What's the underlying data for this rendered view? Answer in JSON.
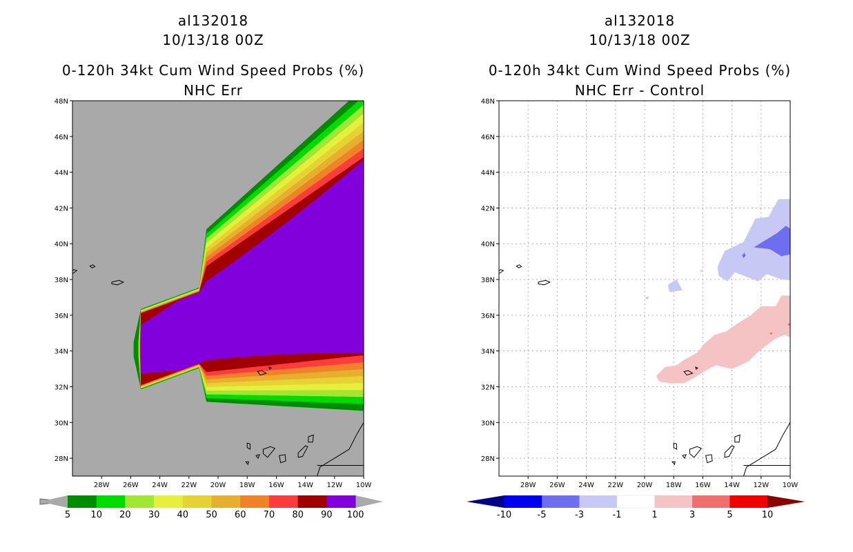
{
  "chart_data": [
    {
      "type": "heatmap",
      "map_projection": "lat-lon",
      "title_lines": [
        "al132018",
        "10/13/18 00Z",
        "0-120h 34kt Cum Wind Speed Probs (%)",
        "NHC Err"
      ],
      "xlim": [
        -30,
        -10
      ],
      "ylim": [
        27,
        48
      ],
      "x_ticks": [
        "28W",
        "26W",
        "24W",
        "22W",
        "20W",
        "18W",
        "16W",
        "14W",
        "12W",
        "10W"
      ],
      "y_ticks": [
        "28N",
        "30N",
        "32N",
        "34N",
        "36N",
        "38N",
        "40N",
        "42N",
        "44N",
        "46N",
        "48N"
      ],
      "grid": false,
      "background_color": "#a9a9a9",
      "colorbar": {
        "levels": [
          "5",
          "10",
          "20",
          "30",
          "40",
          "50",
          "60",
          "70",
          "80",
          "90",
          "100"
        ],
        "colors": [
          "#008c00",
          "#00dc00",
          "#a0e632",
          "#e6f03c",
          "#e6d232",
          "#e6af2d",
          "#f08228",
          "#fa3c3c",
          "#a00000",
          "#8200dc"
        ],
        "extend": "both",
        "extend_color": "#a9a9a9"
      },
      "probability_bands": [
        {
          "min": 5,
          "color": "#008c00"
        },
        {
          "min": 10,
          "color": "#00dc00"
        },
        {
          "min": 20,
          "color": "#a0e632"
        },
        {
          "min": 30,
          "color": "#e6f03c"
        },
        {
          "min": 40,
          "color": "#e6d232"
        },
        {
          "min": 50,
          "color": "#e6af2d"
        },
        {
          "min": 60,
          "color": "#f08228"
        },
        {
          "min": 70,
          "color": "#fa3c3c"
        },
        {
          "min": 80,
          "color": "#a00000"
        },
        {
          "min": 90,
          "color": "#8200dc"
        }
      ]
    },
    {
      "type": "heatmap",
      "map_projection": "lat-lon",
      "title_lines": [
        "al132018",
        "10/13/18 00Z",
        "0-120h 34kt Cum Wind Speed Probs (%)",
        "NHC Err - Control"
      ],
      "xlim": [
        -30,
        -10
      ],
      "ylim": [
        27,
        48
      ],
      "x_ticks": [
        "28W",
        "26W",
        "24W",
        "22W",
        "20W",
        "18W",
        "16W",
        "14W",
        "12W",
        "10W"
      ],
      "y_ticks": [
        "28N",
        "30N",
        "32N",
        "34N",
        "36N",
        "38N",
        "40N",
        "42N",
        "44N",
        "46N",
        "48N"
      ],
      "grid": true,
      "background_color": "#ffffff",
      "colorbar": {
        "levels": [
          "-10",
          "-5",
          "-3",
          "-1",
          "1",
          "3",
          "5",
          "10"
        ],
        "colors": [
          "#00008c",
          "#0000f0",
          "#6e6ef0",
          "#c8c8f5",
          "#ffffff",
          "#f5c3c3",
          "#f06e6e",
          "#f00000",
          "#8c0000"
        ],
        "extend": "both"
      },
      "difference_features": [
        {
          "name": "negative-area-north",
          "range": [
            -3,
            -1
          ],
          "color": "#c8c8f5"
        },
        {
          "name": "negative-core-north",
          "range": [
            -5,
            -3
          ],
          "color": "#6e6ef0"
        },
        {
          "name": "positive-area-south",
          "range": [
            1,
            3
          ],
          "color": "#f5c3c3"
        },
        {
          "name": "positive-speck",
          "range": [
            3,
            5
          ],
          "color": "#f06e6e"
        }
      ]
    }
  ]
}
